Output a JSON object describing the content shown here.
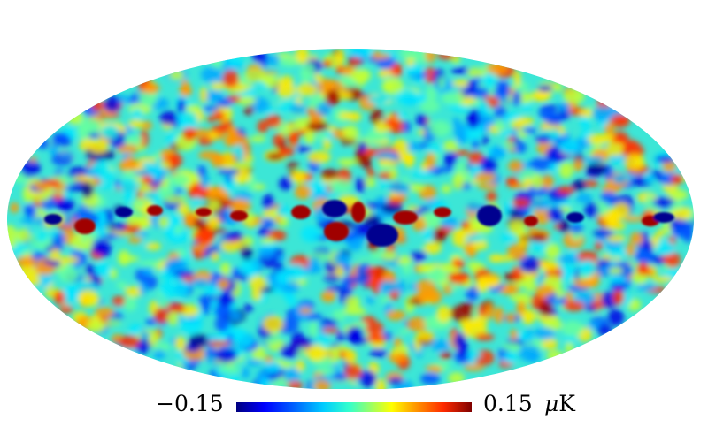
{
  "map": {
    "projection": "mollweide",
    "colormap": "jet"
  },
  "colorbar": {
    "min_label": "−0.15",
    "max_label": "0.15",
    "unit_symbol": "μ",
    "unit_letter": "K",
    "colors": [
      "#00007f",
      "#0000ff",
      "#0066ff",
      "#00ccff",
      "#33ffcc",
      "#99ff66",
      "#ffff00",
      "#ff9900",
      "#ff2a00",
      "#7f0000"
    ]
  }
}
